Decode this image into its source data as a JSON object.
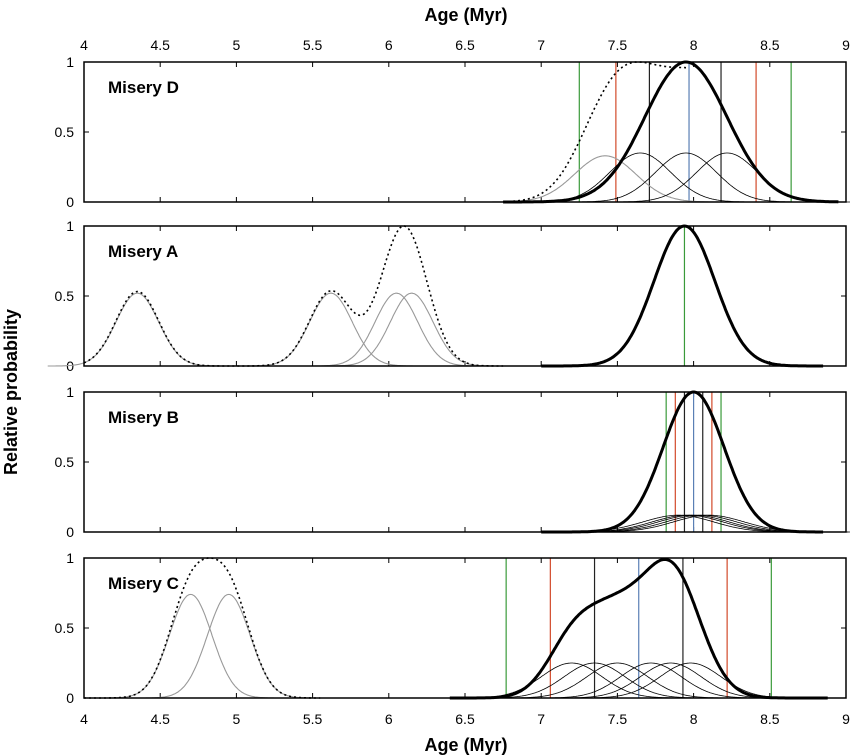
{
  "chart_data": {
    "type": "line",
    "top_xlabel": "Age (Myr)",
    "xlabel": "Age (Myr)",
    "ylabel": "Relative probability",
    "xlim": [
      4,
      9
    ],
    "xticks": [
      "4",
      "4.5",
      "5",
      "5.5",
      "6",
      "6.5",
      "7",
      "7.5",
      "8",
      "8.5",
      "9"
    ],
    "ylim": [
      0,
      1
    ],
    "yticks": [
      "0",
      "0.5",
      "1"
    ],
    "line_colors": {
      "sum": "#000000",
      "component": "#000000",
      "grey_component": "#999999",
      "grey_sum": "#000000",
      "green": "#3a9a3a",
      "red": "#d24a2a",
      "black": "#222222",
      "blue": "#5a7fb5"
    },
    "panels": [
      {
        "label": "Misery D",
        "sum_curve": {
          "mean": 7.95,
          "sigma": 0.27,
          "peak": 1.0,
          "xmin": 6.75,
          "xmax": 8.95
        },
        "components": [
          {
            "mean": 7.42,
            "sigma": 0.2,
            "peak": 0.33,
            "grey": true
          },
          {
            "mean": 7.65,
            "sigma": 0.2,
            "peak": 0.35,
            "grey": false
          },
          {
            "mean": 7.95,
            "sigma": 0.2,
            "peak": 0.35,
            "grey": false
          },
          {
            "mean": 8.22,
            "sigma": 0.2,
            "peak": 0.35,
            "grey": false
          }
        ],
        "dotted_sum": [
          {
            "mean": 7.42,
            "sigma": 0.2,
            "peak": 0.33
          },
          {
            "mean": 7.65,
            "sigma": 0.2,
            "peak": 0.35
          },
          {
            "mean": 7.95,
            "sigma": 0.2,
            "peak": 0.35
          },
          {
            "mean": 8.22,
            "sigma": 0.2,
            "peak": 0.35
          }
        ],
        "dotted_range": [
          6.75,
          7.95
        ],
        "vlines": [
          {
            "x": 7.25,
            "color": "green"
          },
          {
            "x": 7.49,
            "color": "red"
          },
          {
            "x": 7.71,
            "color": "black"
          },
          {
            "x": 7.97,
            "color": "blue"
          },
          {
            "x": 8.18,
            "color": "black"
          },
          {
            "x": 8.41,
            "color": "red"
          },
          {
            "x": 8.64,
            "color": "green"
          }
        ]
      },
      {
        "label": "Misery A",
        "sum_curve": {
          "mean": 7.94,
          "sigma": 0.2,
          "peak": 1.0,
          "xmin": 7.0,
          "xmax": 8.85
        },
        "components": [
          {
            "mean": 4.35,
            "sigma": 0.14,
            "peak": 0.52,
            "grey": true
          },
          {
            "mean": 5.62,
            "sigma": 0.14,
            "peak": 0.52,
            "grey": true
          },
          {
            "mean": 6.05,
            "sigma": 0.14,
            "peak": 0.52,
            "grey": true
          },
          {
            "mean": 6.15,
            "sigma": 0.14,
            "peak": 0.52,
            "grey": true
          }
        ],
        "dotted_sum": [
          {
            "mean": 4.35,
            "sigma": 0.14,
            "peak": 0.52
          },
          {
            "mean": 5.62,
            "sigma": 0.14,
            "peak": 0.52
          },
          {
            "mean": 6.05,
            "sigma": 0.14,
            "peak": 0.52
          },
          {
            "mean": 6.15,
            "sigma": 0.14,
            "peak": 0.52
          }
        ],
        "dotted_range": [
          4.0,
          6.75
        ],
        "vlines": [
          {
            "x": 7.94,
            "color": "green"
          }
        ]
      },
      {
        "label": "Misery B",
        "sum_curve": {
          "mean": 8.0,
          "sigma": 0.2,
          "peak": 1.0,
          "xmin": 7.0,
          "xmax": 8.85
        },
        "components": [
          {
            "mean": 7.9,
            "sigma": 0.23,
            "peak": 0.12,
            "grey": false
          },
          {
            "mean": 7.96,
            "sigma": 0.23,
            "peak": 0.12,
            "grey": false
          },
          {
            "mean": 8.0,
            "sigma": 0.23,
            "peak": 0.12,
            "grey": false
          },
          {
            "mean": 8.05,
            "sigma": 0.23,
            "peak": 0.12,
            "grey": false
          },
          {
            "mean": 8.1,
            "sigma": 0.23,
            "peak": 0.12,
            "grey": false
          }
        ],
        "dotted_sum": [],
        "dotted_range": [
          8.0,
          8.0
        ],
        "vlines": [
          {
            "x": 7.82,
            "color": "green"
          },
          {
            "x": 7.88,
            "color": "red"
          },
          {
            "x": 7.94,
            "color": "black"
          },
          {
            "x": 8.0,
            "color": "blue"
          },
          {
            "x": 8.06,
            "color": "black"
          },
          {
            "x": 8.12,
            "color": "red"
          },
          {
            "x": 8.18,
            "color": "green"
          }
        ]
      },
      {
        "label": "Misery C",
        "sum_curve": {
          "mixture": [
            {
              "mean": 7.22,
              "sigma": 0.17,
              "peak": 0.42
            },
            {
              "mean": 7.5,
              "sigma": 0.17,
              "peak": 0.45
            },
            {
              "mean": 7.85,
              "sigma": 0.19,
              "peak": 0.88
            }
          ],
          "xmin": 6.4,
          "xmax": 8.88
        },
        "components": [
          {
            "mean": 7.2,
            "sigma": 0.2,
            "peak": 0.25,
            "grey": false
          },
          {
            "mean": 7.35,
            "sigma": 0.2,
            "peak": 0.25,
            "grey": false
          },
          {
            "mean": 7.5,
            "sigma": 0.2,
            "peak": 0.25,
            "grey": false
          },
          {
            "mean": 7.72,
            "sigma": 0.2,
            "peak": 0.25,
            "grey": false
          },
          {
            "mean": 7.85,
            "sigma": 0.2,
            "peak": 0.25,
            "grey": false
          },
          {
            "mean": 7.98,
            "sigma": 0.2,
            "peak": 0.25,
            "grey": false
          }
        ],
        "grey_components": [
          {
            "mean": 4.7,
            "sigma": 0.14,
            "peak": 0.74
          },
          {
            "mean": 4.95,
            "sigma": 0.14,
            "peak": 0.74
          }
        ],
        "dotted_sum": [
          {
            "mean": 4.7,
            "sigma": 0.14,
            "peak": 0.74
          },
          {
            "mean": 4.95,
            "sigma": 0.14,
            "peak": 0.74
          }
        ],
        "dotted_range": [
          4.0,
          5.55
        ],
        "vlines": [
          {
            "x": 6.77,
            "color": "green"
          },
          {
            "x": 7.06,
            "color": "red"
          },
          {
            "x": 7.35,
            "color": "black"
          },
          {
            "x": 7.64,
            "color": "blue"
          },
          {
            "x": 7.93,
            "color": "black"
          },
          {
            "x": 8.22,
            "color": "red"
          },
          {
            "x": 8.51,
            "color": "green"
          }
        ]
      }
    ]
  }
}
